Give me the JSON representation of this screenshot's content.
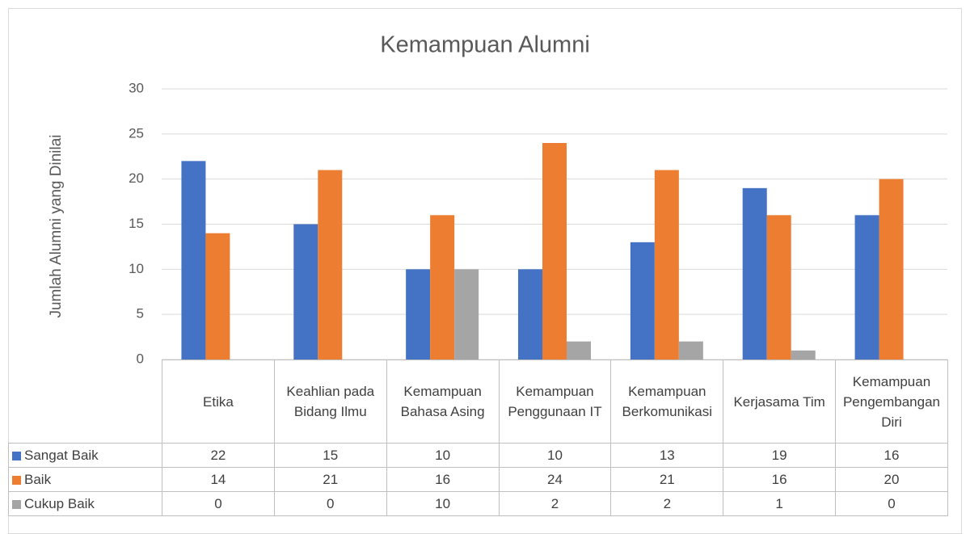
{
  "chart_data": {
    "type": "bar",
    "title": "Kemampuan Alumni",
    "y_label": "Jumlah Alumni yang Dinilai",
    "categories": [
      "Etika",
      "Keahlian pada Bidang Ilmu",
      "Kemampuan Bahasa Asing",
      "Kemampuan Penggunaan IT",
      "Kemampuan Berkomunikasi",
      "Kerjasama Tim",
      "Kemampuan Pengembangan Diri"
    ],
    "series": [
      {
        "name": "Sangat Baik",
        "color": "#4472c4",
        "values": [
          22,
          15,
          10,
          10,
          13,
          19,
          16
        ]
      },
      {
        "name": "Baik",
        "color": "#ed7d31",
        "values": [
          14,
          21,
          16,
          24,
          21,
          16,
          20
        ]
      },
      {
        "name": "Cukup Baik",
        "color": "#a5a5a5",
        "values": [
          0,
          0,
          10,
          2,
          2,
          1,
          0
        ]
      }
    ],
    "ylim": [
      0,
      30
    ],
    "yticks": [
      0,
      5,
      10,
      15,
      20,
      25,
      30
    ],
    "grid": true,
    "data_table": true
  }
}
